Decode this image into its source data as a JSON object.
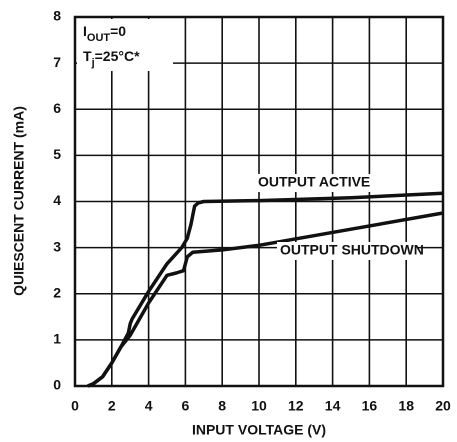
{
  "chart_data": {
    "type": "line",
    "xlabel": "INPUT VOLTAGE (V)",
    "ylabel": "QUIESCENT CURRENT (mA)",
    "xlim": [
      0,
      20
    ],
    "xticks": [
      0,
      2,
      4,
      6,
      8,
      10,
      12,
      14,
      16,
      18,
      20
    ],
    "ylim": [
      0,
      8
    ],
    "yticks": [
      0,
      1,
      2,
      3,
      4,
      5,
      6,
      7,
      8
    ],
    "grid": true,
    "annotations": [
      {
        "parts": [
          {
            "text": "I"
          },
          {
            "text": "OUT",
            "sub": true
          },
          {
            "text": "=0"
          }
        ]
      },
      {
        "parts": [
          {
            "text": "T"
          },
          {
            "text": "j",
            "sub": true
          },
          {
            "text": "=25°C*"
          }
        ]
      }
    ],
    "series": [
      {
        "name": "OUTPUT ACTIVE",
        "color": "#111111",
        "x": [
          0.7,
          1,
          1.5,
          2,
          2.5,
          2.9,
          3,
          3.1,
          4,
          5,
          5.8,
          6.1,
          6.3,
          6.5,
          6.7,
          7,
          10,
          15,
          20
        ],
        "values": [
          0,
          0.05,
          0.2,
          0.5,
          0.85,
          1.15,
          1.35,
          1.45,
          2.05,
          2.65,
          3.0,
          3.2,
          3.5,
          3.9,
          3.97,
          4.0,
          4.02,
          4.08,
          4.18
        ]
      },
      {
        "name": "OUTPUT SHUTDOWN",
        "color": "#111111",
        "x": [
          0.7,
          1,
          1.5,
          2,
          2.5,
          3,
          4,
          5,
          5.5,
          5.9,
          6.1,
          6.4,
          8,
          10,
          15,
          20
        ],
        "values": [
          0,
          0.05,
          0.2,
          0.5,
          0.85,
          1.1,
          1.8,
          2.4,
          2.45,
          2.5,
          2.8,
          2.9,
          2.95,
          3.05,
          3.4,
          3.75
        ]
      }
    ]
  }
}
